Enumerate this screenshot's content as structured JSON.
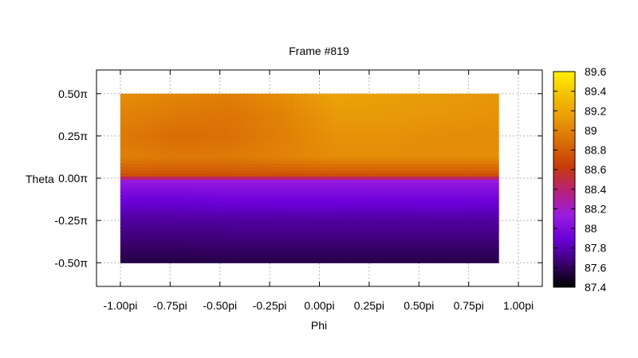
{
  "chart_data": {
    "type": "heatmap",
    "title": "Frame #819",
    "xlabel": "Phi",
    "ylabel": "Theta",
    "x_ticks": [
      {
        "value": -1.0,
        "label": "-1.00pi"
      },
      {
        "value": -0.75,
        "label": "-0.75pi"
      },
      {
        "value": -0.5,
        "label": "-0.50pi"
      },
      {
        "value": -0.25,
        "label": "-0.25pi"
      },
      {
        "value": 0.0,
        "label": "0.00pi"
      },
      {
        "value": 0.25,
        "label": "0.25pi"
      },
      {
        "value": 0.5,
        "label": "0.50pi"
      },
      {
        "value": 0.75,
        "label": "0.75pi"
      },
      {
        "value": 1.0,
        "label": "1.00pi"
      }
    ],
    "y_ticks": [
      {
        "value": 0.5,
        "label": "0.50π"
      },
      {
        "value": 0.25,
        "label": "0.25π"
      },
      {
        "value": 0.0,
        "label": "0.00π"
      },
      {
        "value": -0.25,
        "label": "-0.25π"
      },
      {
        "value": -0.5,
        "label": "-0.50π"
      }
    ],
    "xlim": [
      -1.12,
      1.12
    ],
    "ylim": [
      -0.64,
      0.64
    ],
    "data_extent": {
      "phi": [
        -1.0,
        0.9
      ],
      "theta": [
        -0.5,
        0.5
      ]
    },
    "colorbar": {
      "range": [
        87.4,
        89.6
      ],
      "ticks": [
        "89.6",
        "89.4",
        "89.2",
        "89",
        "88.8",
        "88.6",
        "88.4",
        "88.2",
        "88",
        "87.8",
        "87.6",
        "87.4"
      ],
      "palette": [
        "#000000",
        "#3a006e",
        "#6a00d8",
        "#9a1ce0",
        "#b8207a",
        "#c63a0a",
        "#d86a06",
        "#e89808",
        "#f4c000",
        "#fff000"
      ]
    },
    "grid": true,
    "colormap_note": "",
    "values_theta_rows": [
      {
        "theta": 0.5,
        "values": [
          89.05,
          89.02,
          88.98,
          89.05,
          89.18,
          89.15,
          89.12,
          89.1
        ]
      },
      {
        "theta": 0.375,
        "values": [
          89.0,
          88.95,
          88.92,
          89.0,
          89.12,
          89.12,
          89.1,
          89.08
        ]
      },
      {
        "theta": 0.25,
        "values": [
          88.95,
          88.88,
          88.9,
          88.98,
          89.08,
          89.08,
          89.05,
          89.05
        ]
      },
      {
        "theta": 0.125,
        "values": [
          88.98,
          88.95,
          88.95,
          89.0,
          89.05,
          89.05,
          89.05,
          89.05
        ]
      },
      {
        "theta": 0.02,
        "values": [
          88.75,
          88.75,
          88.75,
          88.75,
          88.75,
          88.75,
          88.75,
          88.75
        ]
      },
      {
        "theta": -0.02,
        "values": [
          88.1,
          88.1,
          88.1,
          88.1,
          88.1,
          88.1,
          88.1,
          88.1
        ]
      },
      {
        "theta": -0.125,
        "values": [
          87.9,
          87.9,
          87.92,
          87.92,
          87.92,
          87.92,
          87.92,
          87.92
        ]
      },
      {
        "theta": -0.25,
        "values": [
          87.75,
          87.75,
          87.76,
          87.76,
          87.76,
          87.76,
          87.76,
          87.76
        ]
      },
      {
        "theta": -0.375,
        "values": [
          87.65,
          87.65,
          87.66,
          87.66,
          87.66,
          87.66,
          87.66,
          87.66
        ]
      },
      {
        "theta": -0.5,
        "values": [
          87.55,
          87.55,
          87.56,
          87.56,
          87.56,
          87.56,
          87.56,
          87.56
        ]
      }
    ]
  }
}
